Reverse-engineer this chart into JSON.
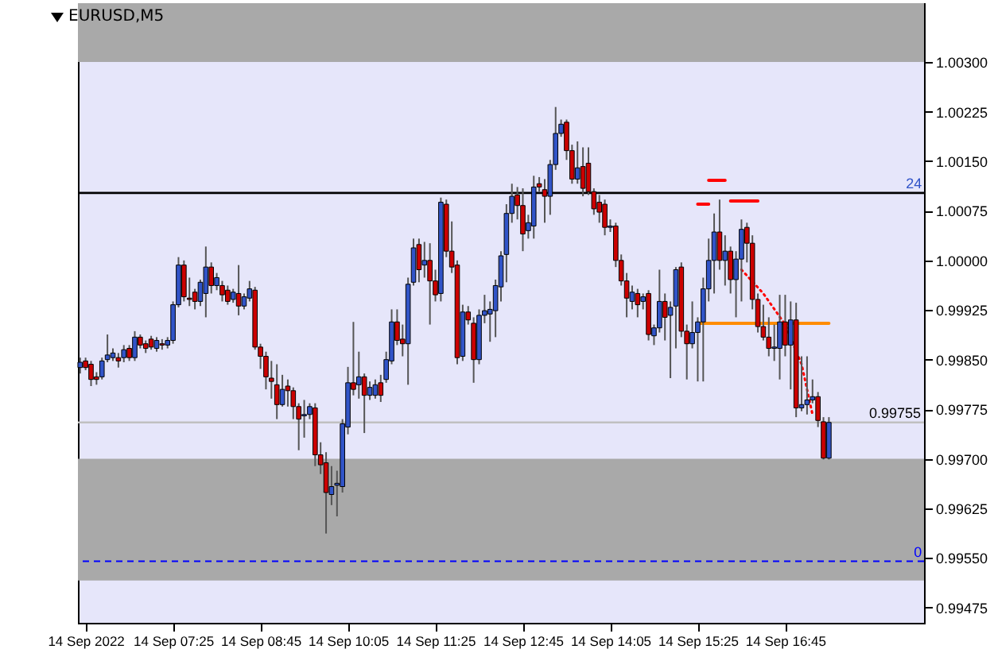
{
  "chart_data": {
    "type": "candlestick",
    "title": "EURUSD,M5",
    "xlim": [
      "2022-09-14T05:58",
      "2022-09-14T18:52"
    ],
    "xticks": [
      {
        "value": "2022-09-14T06:05",
        "label": "14 Sep 2022"
      },
      {
        "value": "2022-09-14T07:25",
        "label": "14 Sep 07:25"
      },
      {
        "value": "2022-09-14T08:45",
        "label": "14 Sep 08:45"
      },
      {
        "value": "2022-09-14T10:05",
        "label": "14 Sep 10:05"
      },
      {
        "value": "2022-09-14T11:25",
        "label": "14 Sep 11:25"
      },
      {
        "value": "2022-09-14T12:45",
        "label": "14 Sep 12:45"
      },
      {
        "value": "2022-09-14T14:05",
        "label": "14 Sep 14:05"
      },
      {
        "value": "2022-09-14T15:25",
        "label": "14 Sep 15:25"
      },
      {
        "value": "2022-09-14T16:45",
        "label": "14 Sep 16:45"
      }
    ],
    "ylim": [
      0.99452,
      1.00389
    ],
    "yticks": [
      {
        "value": 0.99475,
        "label": "0.99475"
      },
      {
        "value": 0.9955,
        "label": "0.99550"
      },
      {
        "value": 0.99625,
        "label": "0.99625"
      },
      {
        "value": 0.997,
        "label": "0.99700"
      },
      {
        "value": 0.99775,
        "label": "0.99775"
      },
      {
        "value": 0.9985,
        "label": "0.99850"
      },
      {
        "value": 0.99925,
        "label": "0.99925"
      },
      {
        "value": 1.0,
        "label": "1.00000"
      },
      {
        "value": 1.00075,
        "label": "1.00075"
      },
      {
        "value": 1.0015,
        "label": "1.00150"
      },
      {
        "value": 1.00225,
        "label": "1.00225"
      },
      {
        "value": 1.003,
        "label": "1.00300"
      }
    ],
    "bands": [
      {
        "axis": "y",
        "from": 1.003,
        "to": 1.00389,
        "color": "#a9a9a9"
      },
      {
        "axis": "y",
        "from": 0.99516,
        "to": 0.997,
        "color": "#a9a9a9"
      }
    ],
    "annotations": [
      {
        "text": "24",
        "x": "2022-09-14T18:50",
        "y": 1.00102
      },
      {
        "text": "0",
        "x": "2022-09-14T18:50",
        "y": 0.99545
      }
    ],
    "ref_lines": [
      {
        "axis": "y",
        "value": 1.00102,
        "color": "#000000",
        "line_style": "solid"
      },
      {
        "axis": "y",
        "value": 0.99545,
        "color": "#0000ff",
        "line_style": "dashed"
      },
      {
        "axis": "y",
        "value": 0.99755,
        "label": "0.99755",
        "color": "#c0c0c0",
        "line_style": "solid"
      }
    ],
    "series": [
      {
        "type": "candlestick",
        "x": [
          "2022-09-14T06:00",
          "2022-09-14T06:05",
          "2022-09-14T06:10",
          "2022-09-14T06:15",
          "2022-09-14T06:20",
          "2022-09-14T06:25",
          "2022-09-14T06:30",
          "2022-09-14T06:35",
          "2022-09-14T06:40",
          "2022-09-14T06:45",
          "2022-09-14T06:50",
          "2022-09-14T06:55",
          "2022-09-14T07:00",
          "2022-09-14T07:05",
          "2022-09-14T07:10",
          "2022-09-14T07:15",
          "2022-09-14T07:20",
          "2022-09-14T07:25",
          "2022-09-14T07:30",
          "2022-09-14T07:35",
          "2022-09-14T07:40",
          "2022-09-14T07:45",
          "2022-09-14T07:50",
          "2022-09-14T07:55",
          "2022-09-14T08:00",
          "2022-09-14T08:05",
          "2022-09-14T08:10",
          "2022-09-14T08:15",
          "2022-09-14T08:20",
          "2022-09-14T08:25",
          "2022-09-14T08:30",
          "2022-09-14T08:35",
          "2022-09-14T08:40",
          "2022-09-14T08:45",
          "2022-09-14T08:50",
          "2022-09-14T08:55",
          "2022-09-14T09:00",
          "2022-09-14T09:05",
          "2022-09-14T09:10",
          "2022-09-14T09:15",
          "2022-09-14T09:20",
          "2022-09-14T09:25",
          "2022-09-14T09:30",
          "2022-09-14T09:35",
          "2022-09-14T09:40",
          "2022-09-14T09:45",
          "2022-09-14T09:50",
          "2022-09-14T09:55",
          "2022-09-14T10:00",
          "2022-09-14T10:05",
          "2022-09-14T10:10",
          "2022-09-14T10:15",
          "2022-09-14T10:20",
          "2022-09-14T10:25",
          "2022-09-14T10:30",
          "2022-09-14T10:35",
          "2022-09-14T10:40",
          "2022-09-14T10:45",
          "2022-09-14T10:50",
          "2022-09-14T10:55",
          "2022-09-14T11:00",
          "2022-09-14T11:05",
          "2022-09-14T11:10",
          "2022-09-14T11:15",
          "2022-09-14T11:20",
          "2022-09-14T11:25",
          "2022-09-14T11:30",
          "2022-09-14T11:35",
          "2022-09-14T11:40",
          "2022-09-14T11:45",
          "2022-09-14T11:50",
          "2022-09-14T11:55",
          "2022-09-14T12:00",
          "2022-09-14T12:05",
          "2022-09-14T12:10",
          "2022-09-14T12:15",
          "2022-09-14T12:20",
          "2022-09-14T12:25",
          "2022-09-14T12:30",
          "2022-09-14T12:35",
          "2022-09-14T12:40",
          "2022-09-14T12:45",
          "2022-09-14T12:50",
          "2022-09-14T12:55",
          "2022-09-14T13:00",
          "2022-09-14T13:05",
          "2022-09-14T13:10",
          "2022-09-14T13:15",
          "2022-09-14T13:20",
          "2022-09-14T13:25",
          "2022-09-14T13:30",
          "2022-09-14T13:35",
          "2022-09-14T13:40",
          "2022-09-14T13:45",
          "2022-09-14T13:50",
          "2022-09-14T13:55",
          "2022-09-14T14:00",
          "2022-09-14T14:05",
          "2022-09-14T14:10",
          "2022-09-14T14:15",
          "2022-09-14T14:20",
          "2022-09-14T14:25",
          "2022-09-14T14:30",
          "2022-09-14T14:35",
          "2022-09-14T14:40",
          "2022-09-14T14:45",
          "2022-09-14T14:50",
          "2022-09-14T14:55",
          "2022-09-14T15:00",
          "2022-09-14T15:05",
          "2022-09-14T15:10",
          "2022-09-14T15:15",
          "2022-09-14T15:20",
          "2022-09-14T15:25",
          "2022-09-14T15:30",
          "2022-09-14T15:35",
          "2022-09-14T15:40",
          "2022-09-14T15:45",
          "2022-09-14T15:50",
          "2022-09-14T15:55",
          "2022-09-14T16:00",
          "2022-09-14T16:05",
          "2022-09-14T16:10",
          "2022-09-14T16:15",
          "2022-09-14T16:20",
          "2022-09-14T16:25",
          "2022-09-14T16:30",
          "2022-09-14T16:35",
          "2022-09-14T16:40",
          "2022-09-14T16:45",
          "2022-09-14T16:50",
          "2022-09-14T16:55",
          "2022-09-14T17:00",
          "2022-09-14T17:05",
          "2022-09-14T17:10",
          "2022-09-14T17:15",
          "2022-09-14T17:20",
          "2022-09-14T17:25"
        ],
        "ohlc": [
          [
            0.99838,
            0.99853,
            0.99829,
            0.99846
          ],
          [
            0.99848,
            0.99853,
            0.99834,
            0.99838
          ],
          [
            0.99843,
            0.99848,
            0.9981,
            0.9982
          ],
          [
            0.99824,
            0.99831,
            0.99812,
            0.9982
          ],
          [
            0.99824,
            0.99853,
            0.9982,
            0.99848
          ],
          [
            0.9985,
            0.99888,
            0.99846,
            0.99857
          ],
          [
            0.99853,
            0.99867,
            0.99848,
            0.9986
          ],
          [
            0.99853,
            0.9986,
            0.99838,
            0.99848
          ],
          [
            0.99853,
            0.99872,
            0.99846,
            0.99865
          ],
          [
            0.99867,
            0.99872,
            0.99848,
            0.99853
          ],
          [
            0.99853,
            0.99893,
            0.99848,
            0.99884
          ],
          [
            0.99884,
            0.99888,
            0.99867,
            0.99872
          ],
          [
            0.99874,
            0.99879,
            0.9986,
            0.99867
          ],
          [
            0.99881,
            0.99886,
            0.99865,
            0.99869
          ],
          [
            0.99867,
            0.99884,
            0.99862,
            0.99879
          ],
          [
            0.99874,
            0.99881,
            0.99865,
            0.99872
          ],
          [
            0.99872,
            0.99884,
            0.99867,
            0.99879
          ],
          [
            0.99879,
            0.99938,
            0.99874,
            0.99933
          ],
          [
            0.99933,
            1.00005,
            0.99929,
            0.99993
          ],
          [
            0.99993,
            1.0,
            0.99938,
            0.99945
          ],
          [
            0.99943,
            0.99974,
            0.99931,
            0.99941
          ],
          [
            0.99952,
            0.99957,
            0.99926,
            0.99938
          ],
          [
            0.99938,
            0.99971,
            0.99931,
            0.99967
          ],
          [
            0.9995,
            1.00021,
            0.99914,
            0.9999
          ],
          [
            0.9999,
            0.99997,
            0.9995,
            0.99962
          ],
          [
            0.99962,
            0.99981,
            0.99955,
            0.99974
          ],
          [
            0.99962,
            0.99969,
            0.99938,
            0.99948
          ],
          [
            0.99955,
            0.99962,
            0.99933,
            0.99938
          ],
          [
            0.99941,
            0.99957,
            0.99936,
            0.99952
          ],
          [
            0.9995,
            0.99993,
            0.99917,
            0.99931
          ],
          [
            0.99931,
            0.9995,
            0.99926,
            0.99945
          ],
          [
            0.99943,
            0.99969,
            0.99938,
            0.99957
          ],
          [
            0.99955,
            0.9996,
            0.99865,
            0.99869
          ],
          [
            0.99869,
            0.99874,
            0.99836,
            0.99855
          ],
          [
            0.99855,
            0.99862,
            0.99805,
            0.99824
          ],
          [
            0.99822,
            0.99848,
            0.99791,
            0.99817
          ],
          [
            0.99812,
            0.99843,
            0.9976,
            0.99782
          ],
          [
            0.99782,
            0.99827,
            0.99779,
            0.99805
          ],
          [
            0.9981,
            0.9982,
            0.99779,
            0.99803
          ],
          [
            0.99803,
            0.99808,
            0.9976,
            0.99779
          ],
          [
            0.99779,
            0.99784,
            0.99713,
            0.9976
          ],
          [
            0.99765,
            0.99789,
            0.99732,
            0.99767
          ],
          [
            0.99767,
            0.99784,
            0.9976,
            0.99779
          ],
          [
            0.99777,
            0.99784,
            0.99689,
            0.99706
          ],
          [
            0.99706,
            0.99725,
            0.99677,
            0.99691
          ],
          [
            0.99694,
            0.9971,
            0.99587,
            0.99649
          ],
          [
            0.99646,
            0.99689,
            0.9963,
            0.99658
          ],
          [
            0.9966,
            0.99682,
            0.99613,
            0.99663
          ],
          [
            0.99658,
            0.9976,
            0.99649,
            0.99753
          ],
          [
            0.99748,
            0.99839,
            0.99737,
            0.99815
          ],
          [
            0.99815,
            0.99907,
            0.99796,
            0.99805
          ],
          [
            0.99812,
            0.99862,
            0.99791,
            0.99824
          ],
          [
            0.99824,
            0.99829,
            0.99739,
            0.99796
          ],
          [
            0.99796,
            0.99817,
            0.99789,
            0.99808
          ],
          [
            0.99796,
            0.9982,
            0.99791,
            0.99812
          ],
          [
            0.99815,
            0.99827,
            0.99786,
            0.99796
          ],
          [
            0.9982,
            0.99862,
            0.99815,
            0.9985
          ],
          [
            0.99848,
            0.99926,
            0.99843,
            0.99907
          ],
          [
            0.99907,
            0.99926,
            0.99872,
            0.99879
          ],
          [
            0.99881,
            0.99903,
            0.99855,
            0.99874
          ],
          [
            0.99874,
            0.99974,
            0.99812,
            0.99964
          ],
          [
            0.99967,
            1.00033,
            0.99962,
            1.00019
          ],
          [
            1.00024,
            1.00033,
            0.99967,
            0.99986
          ],
          [
            0.99993,
            1.00028,
            0.99974,
            1.0
          ],
          [
            1.0,
            1.00026,
            0.99903,
            0.99969
          ],
          [
            0.99969,
            0.99986,
            0.99938,
            0.99948
          ],
          [
            0.9995,
            1.00095,
            0.99938,
            1.00088
          ],
          [
            1.00085,
            1.00092,
            1.00005,
            1.00014
          ],
          [
            1.00014,
            1.00059,
            0.99981,
            0.9999
          ],
          [
            0.99993,
            1.0,
            0.99843,
            0.99853
          ],
          [
            0.99855,
            0.99933,
            0.99848,
            0.99922
          ],
          [
            0.99922,
            0.99931,
            0.99903,
            0.9991
          ],
          [
            0.99905,
            0.99914,
            0.99815,
            0.9985
          ],
          [
            0.9985,
            0.99926,
            0.99843,
            0.99917
          ],
          [
            0.99917,
            0.99948,
            0.99905,
            0.99924
          ],
          [
            0.99919,
            0.99938,
            0.99877,
            0.99926
          ],
          [
            0.99924,
            0.99971,
            0.99884,
            0.99962
          ],
          [
            0.9996,
            1.00014,
            0.99938,
            1.00007
          ],
          [
            1.00009,
            1.00085,
            0.99967,
            1.00071
          ],
          [
            1.00071,
            1.00116,
            1.00057,
            1.00097
          ],
          [
            1.00099,
            1.00111,
            1.00062,
            1.00083
          ],
          [
            1.00083,
            1.00109,
            1.00014,
            1.0004
          ],
          [
            1.00045,
            1.00069,
            1.00033,
            1.00057
          ],
          [
            1.00052,
            1.00128,
            1.00033,
            1.00111
          ],
          [
            1.00116,
            1.00126,
            1.00104,
            1.00111
          ],
          [
            1.00107,
            1.00123,
            1.00057,
            1.00097
          ],
          [
            1.00097,
            1.00152,
            1.00069,
            1.00145
          ],
          [
            1.00145,
            1.00232,
            1.00137,
            1.00192
          ],
          [
            1.00192,
            1.00213,
            1.00187,
            1.00206
          ],
          [
            1.00209,
            1.00213,
            1.00152,
            1.00166
          ],
          [
            1.00166,
            1.00175,
            1.00116,
            1.00123
          ],
          [
            1.00123,
            1.0018,
            1.00116,
            1.0014
          ],
          [
            1.00142,
            1.00171,
            1.00097,
            1.00109
          ],
          [
            1.00147,
            1.00171,
            1.00099,
            1.00104
          ],
          [
            1.00104,
            1.00109,
            1.00069,
            1.00078
          ],
          [
            1.00088,
            1.00099,
            1.00057,
            1.00073
          ],
          [
            1.00085,
            1.00092,
            1.00038,
            1.0005
          ],
          [
            1.0005,
            1.00062,
            1.00043,
            1.00052
          ],
          [
            1.00052,
            1.00057,
            0.9999,
            1.0
          ],
          [
            1.0,
            1.00009,
            0.99962,
            0.99969
          ],
          [
            0.99969,
            0.99981,
            0.99914,
            0.99943
          ],
          [
            0.99938,
            0.99962,
            0.99926,
            0.99952
          ],
          [
            0.9995,
            0.99957,
            0.99914,
            0.99933
          ],
          [
            0.99938,
            0.9995,
            0.99926,
            0.99945
          ],
          [
            0.9995,
            0.99955,
            0.99879,
            0.99888
          ],
          [
            0.99886,
            0.99903,
            0.99872,
            0.99898
          ],
          [
            0.99898,
            0.99986,
            0.99891,
            0.99938
          ],
          [
            0.99938,
            0.9995,
            0.99879,
            0.99914
          ],
          [
            0.99917,
            0.99938,
            0.99822,
            0.99929
          ],
          [
            0.99931,
            0.9999,
            0.99867,
            0.99986
          ],
          [
            0.9999,
            0.99997,
            0.99884,
            0.99893
          ],
          [
            0.99893,
            0.99903,
            0.9982,
            0.99874
          ],
          [
            0.99874,
            0.99938,
            0.99867,
            0.99891
          ],
          [
            0.99891,
            0.99914,
            0.99817,
            0.99907
          ],
          [
            0.99907,
            0.99974,
            0.99817,
            0.99957
          ],
          [
            0.99957,
            1.00033,
            0.99938,
            1.0
          ],
          [
            1.0,
            1.00071,
            0.9995,
            1.00043
          ],
          [
            1.00043,
            1.00092,
            0.99986,
            1.0
          ],
          [
            1.0,
            1.00038,
            0.99962,
            1.00014
          ],
          [
            1.00014,
            1.00021,
            0.9995,
            0.99971
          ],
          [
            0.99971,
            1.00014,
            0.99914,
            1.00002
          ],
          [
            1.00002,
            1.00062,
            0.99938,
            1.00047
          ],
          [
            1.0005,
            1.00057,
            0.99997,
            1.00026
          ],
          [
            1.00026,
            1.00038,
            0.99926,
            0.99941
          ],
          [
            0.99941,
            0.9995,
            0.99891,
            0.999
          ],
          [
            0.999,
            0.99933,
            0.99879,
            0.99884
          ],
          [
            0.99884,
            0.99914,
            0.99855,
            0.99867
          ],
          [
            0.99867,
            0.99903,
            0.99848,
            0.99869
          ],
          [
            0.99867,
            0.99948,
            0.9982,
            0.99907
          ],
          [
            0.99907,
            0.99948,
            0.99855,
            0.99872
          ],
          [
            0.99872,
            0.99938,
            0.99805,
            0.9991
          ],
          [
            0.9991,
            0.99936,
            0.99763,
            0.99777
          ],
          [
            0.99777,
            0.99855,
            0.99772,
            0.99782
          ],
          [
            0.99782,
            0.99855,
            0.99767,
            0.99789
          ],
          [
            0.99789,
            0.9982,
            0.99784,
            0.99794
          ],
          [
            0.99794,
            0.99801,
            0.99748,
            0.99758
          ],
          [
            0.99756,
            0.99763,
            0.99699,
            0.99701
          ],
          [
            0.99701,
            0.99763,
            0.99699,
            0.99755
          ]
        ],
        "colors": [
          "#3154c8",
          "#cc0000",
          "#cc0000",
          "#cc0000",
          "#3154c8",
          "#3154c8",
          "#3154c8",
          "#cc0000",
          "#3154c8",
          "#cc0000",
          "#3154c8",
          "#cc0000",
          "#cc0000",
          "#cc0000",
          "#3154c8",
          "#cc0000",
          "#3154c8",
          "#3154c8",
          "#3154c8",
          "#cc0000",
          "#cc0000",
          "#cc0000",
          "#3154c8",
          "#3154c8",
          "#cc0000",
          "#3154c8",
          "#cc0000",
          "#cc0000",
          "#3154c8",
          "#cc0000",
          "#3154c8",
          "#3154c8",
          "#cc0000",
          "#cc0000",
          "#cc0000",
          "#cc0000",
          "#cc0000",
          "#3154c8",
          "#cc0000",
          "#cc0000",
          "#cc0000",
          "#3154c8",
          "#3154c8",
          "#cc0000",
          "#cc0000",
          "#cc0000",
          "#3154c8",
          "#3154c8",
          "#3154c8",
          "#3154c8",
          "#cc0000",
          "#3154c8",
          "#cc0000",
          "#3154c8",
          "#3154c8",
          "#cc0000",
          "#3154c8",
          "#3154c8",
          "#cc0000",
          "#cc0000",
          "#3154c8",
          "#3154c8",
          "#cc0000",
          "#3154c8",
          "#cc0000",
          "#cc0000",
          "#3154c8",
          "#cc0000",
          "#cc0000",
          "#cc0000",
          "#3154c8",
          "#cc0000",
          "#cc0000",
          "#3154c8",
          "#3154c8",
          "#3154c8",
          "#3154c8",
          "#3154c8",
          "#3154c8",
          "#3154c8",
          "#cc0000",
          "#cc0000",
          "#3154c8",
          "#3154c8",
          "#cc0000",
          "#cc0000",
          "#3154c8",
          "#3154c8",
          "#3154c8",
          "#cc0000",
          "#cc0000",
          "#3154c8",
          "#cc0000",
          "#cc0000",
          "#cc0000",
          "#cc0000",
          "#cc0000",
          "#3154c8",
          "#cc0000",
          "#cc0000",
          "#cc0000",
          "#3154c8",
          "#cc0000",
          "#3154c8",
          "#cc0000",
          "#3154c8",
          "#3154c8",
          "#cc0000",
          "#3154c8",
          "#3154c8",
          "#cc0000",
          "#cc0000",
          "#3154c8",
          "#3154c8",
          "#3154c8",
          "#3154c8",
          "#3154c8",
          "#cc0000",
          "#3154c8",
          "#cc0000",
          "#3154c8",
          "#3154c8",
          "#cc0000",
          "#cc0000",
          "#cc0000",
          "#cc0000",
          "#cc0000",
          "#3154c8",
          "#3154c8",
          "#cc0000",
          "#3154c8",
          "#cc0000",
          "#3154c8",
          "#3154c8",
          "#3154c8",
          "#cc0000",
          "#cc0000",
          "#3154c8"
        ]
      },
      {
        "type": "line",
        "color": "#ff0000",
        "line_style": "solid",
        "x": [
          "2022-09-14T15:35",
          "2022-09-14T15:50"
        ],
        "values": [
          1.00121,
          1.00121
        ]
      },
      {
        "type": "line",
        "color": "#ff0000",
        "line_style": "solid",
        "x": [
          "2022-09-14T15:25",
          "2022-09-14T15:35"
        ],
        "values": [
          1.00085,
          1.00085
        ]
      },
      {
        "type": "line",
        "color": "#ff0000",
        "line_style": "solid",
        "x": [
          "2022-09-14T15:55",
          "2022-09-14T16:20"
        ],
        "values": [
          1.0009,
          1.0009
        ]
      },
      {
        "type": "line",
        "color": "#ff8c00",
        "line_style": "solid",
        "x": [
          "2022-09-14T15:25",
          "2022-09-14T17:25"
        ],
        "values": [
          0.99905,
          0.99905
        ]
      },
      {
        "type": "line",
        "color": "#ff0000",
        "line_style": "dotted",
        "x": [
          "2022-09-14T16:05",
          "2022-09-14T16:25",
          "2022-09-14T16:45",
          "2022-09-14T17:00",
          "2022-09-14T17:10"
        ],
        "values": [
          0.99986,
          0.9995,
          0.99903,
          0.99843,
          0.99767
        ]
      }
    ]
  }
}
